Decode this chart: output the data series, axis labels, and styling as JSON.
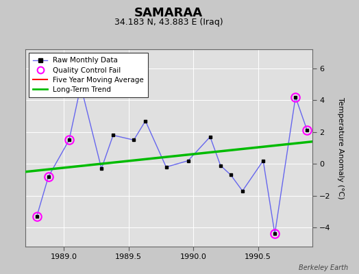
{
  "title": "SAMARAA",
  "subtitle": "34.183 N, 43.883 E (Iraq)",
  "ylabel": "Temperature Anomaly (°C)",
  "attribution": "Berkeley Earth",
  "xlim": [
    1988.7,
    1990.92
  ],
  "ylim": [
    -5.2,
    7.2
  ],
  "yticks": [
    -4,
    -2,
    0,
    2,
    4,
    6
  ],
  "xticks": [
    1989.0,
    1989.5,
    1990.0,
    1990.5
  ],
  "fig_bg_color": "#c8c8c8",
  "plot_bg_color": "#e0e0e0",
  "raw_x": [
    1988.79,
    1988.88,
    1989.04,
    1989.13,
    1989.29,
    1989.38,
    1989.54,
    1989.63,
    1989.79,
    1989.96,
    1990.13,
    1990.21,
    1990.29,
    1990.38,
    1990.54,
    1990.63,
    1990.79,
    1990.88
  ],
  "raw_y": [
    -3.3,
    -0.8,
    1.5,
    4.9,
    -0.3,
    1.8,
    1.5,
    2.7,
    -0.2,
    0.2,
    1.7,
    -0.1,
    -0.7,
    -1.7,
    0.2,
    -4.4,
    4.2,
    2.1
  ],
  "qc_fail_x": [
    1988.79,
    1988.88,
    1989.04,
    1989.13,
    1990.63,
    1990.79,
    1990.88
  ],
  "qc_fail_y": [
    -3.3,
    -0.8,
    1.5,
    4.9,
    -4.4,
    4.2,
    2.1
  ],
  "trend_x": [
    1988.7,
    1990.92
  ],
  "trend_y": [
    -0.5,
    1.4
  ],
  "raw_line_color": "#6666ee",
  "raw_marker_color": "#000000",
  "qc_color": "#ff00ff",
  "trend_color": "#00bb00",
  "moving_avg_color": "#ff0000",
  "grid_color": "#ffffff",
  "title_fontsize": 13,
  "subtitle_fontsize": 9,
  "tick_fontsize": 8,
  "ylabel_fontsize": 8
}
